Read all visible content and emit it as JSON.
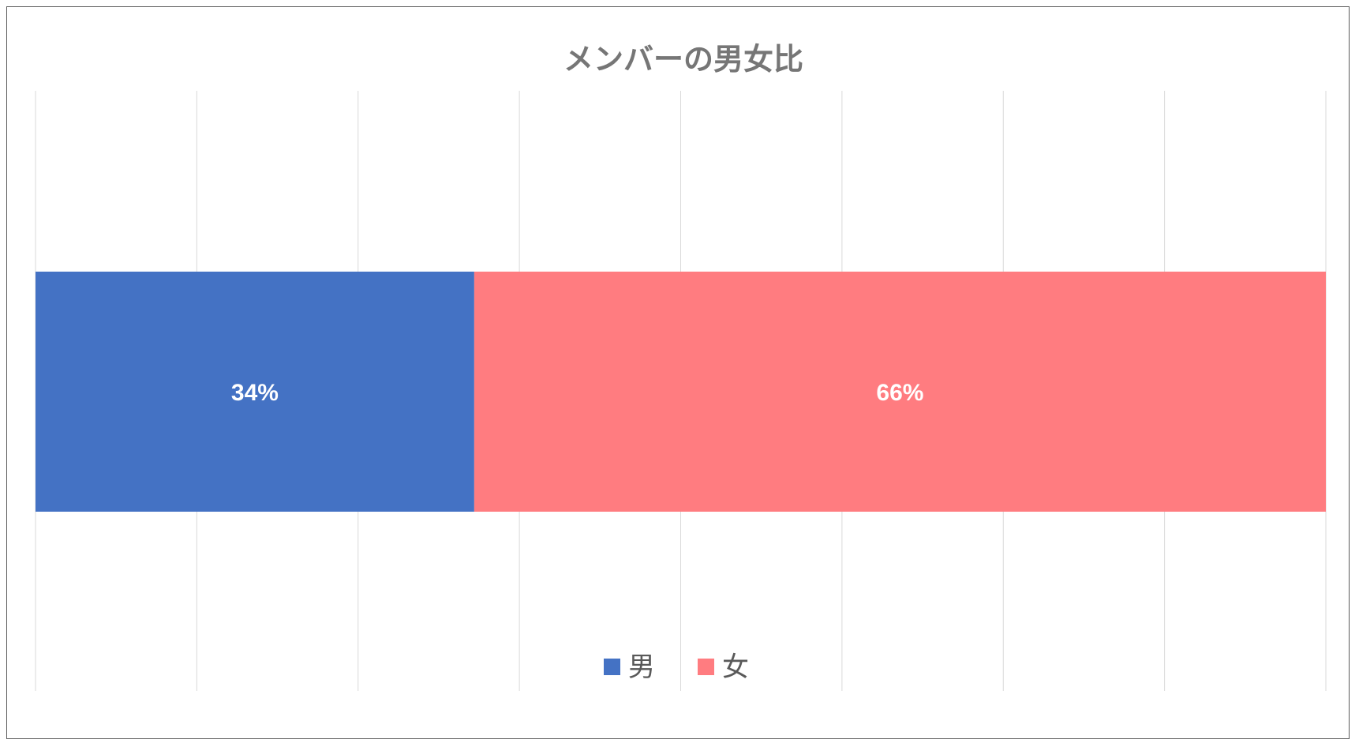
{
  "chart_data": {
    "type": "bar",
    "orientation": "horizontal",
    "stacked": true,
    "percent_stacked": true,
    "title": "メンバーの男女比",
    "categories": [
      ""
    ],
    "series": [
      {
        "name": "男",
        "values": [
          34
        ],
        "label": "34%",
        "color": "#4472C4"
      },
      {
        "name": "女",
        "values": [
          66
        ],
        "label": "66%",
        "color": "#FF7C80"
      }
    ],
    "xlim": [
      0,
      100
    ],
    "x_gridlines": [
      0,
      12.5,
      25,
      37.5,
      50,
      62.5,
      75,
      87.5,
      100
    ],
    "x_tick_labels_visible": false,
    "grid": true,
    "legend_position": "bottom"
  }
}
